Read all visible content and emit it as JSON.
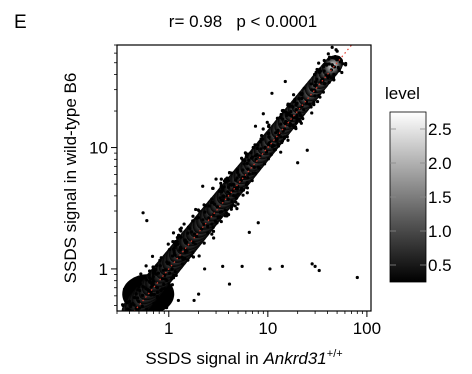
{
  "panel_letter": "E",
  "chart_data": {
    "type": "scatter",
    "title": "r= 0.98   p < 0.0001",
    "xlabel_prefix": "SSDS signal in ",
    "xlabel_italic": "Ankrd31",
    "xlabel_sup": "+/+",
    "ylabel": "SSDS signal in wild-type B6",
    "x_scale": "log",
    "y_scale": "log",
    "xlim": [
      0.3,
      110
    ],
    "ylim": [
      0.45,
      70
    ],
    "x_ticks": [
      1,
      10,
      100
    ],
    "x_tick_labels": [
      "1",
      "10",
      "100"
    ],
    "y_ticks": [
      1,
      10
    ],
    "y_tick_labels": [
      "1",
      "10"
    ],
    "grid": false,
    "identity_line": {
      "from": [
        0.3,
        0.3
      ],
      "to": [
        110,
        110
      ],
      "color": "#e03c2e",
      "style": "dotted"
    },
    "density_overlay": true,
    "point_color": "#000000",
    "outlier_points": [
      [
        80,
        0.85
      ],
      [
        33,
        0.97
      ],
      [
        30,
        1.05
      ],
      [
        28,
        1.1
      ],
      [
        14,
        1.05
      ],
      [
        10.5,
        1.0
      ],
      [
        5.5,
        1.05
      ],
      [
        4.1,
        0.75
      ],
      [
        3.5,
        1.05
      ],
      [
        2.3,
        1.0
      ],
      [
        1.8,
        0.55
      ],
      [
        2.0,
        0.62
      ],
      [
        1.25,
        0.55
      ],
      [
        0.45,
        0.58
      ],
      [
        0.42,
        0.75
      ],
      [
        0.6,
        2.5
      ],
      [
        0.55,
        2.9
      ],
      [
        7.5,
        15
      ],
      [
        9.0,
        19
      ],
      [
        15,
        35
      ],
      [
        11,
        28
      ],
      [
        3.0,
        5.5
      ],
      [
        2.2,
        4.8
      ],
      [
        0.95,
        0.48
      ],
      [
        6.5,
        2.0
      ],
      [
        8.0,
        2.4
      ],
      [
        20,
        7.5
      ],
      [
        25,
        9.5
      ]
    ],
    "colorbar": {
      "title": "level",
      "ticks": [
        0.5,
        1.0,
        1.5,
        2.0,
        2.5
      ],
      "tick_labels": [
        "0.5",
        "1.0",
        "1.5",
        "2.0",
        "2.5"
      ],
      "range": [
        0.25,
        2.75
      ],
      "colors": [
        "#000000",
        "#ffffff"
      ]
    }
  }
}
